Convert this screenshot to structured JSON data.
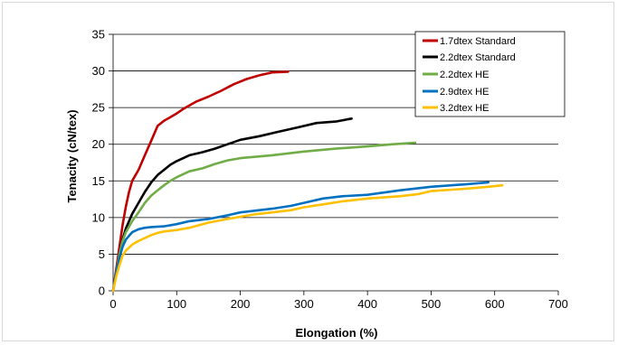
{
  "chart_data": {
    "type": "line",
    "xlabel": "Elongation (%)",
    "ylabel": "Tenacity (cN/tex)",
    "xlim": [
      0,
      700
    ],
    "ylim": [
      0,
      35
    ],
    "xticks": [
      0,
      100,
      200,
      300,
      400,
      500,
      600,
      700
    ],
    "yticks": [
      0,
      5,
      10,
      15,
      20,
      25,
      30,
      35
    ],
    "grid": "horizontal",
    "legend_position": "top-right",
    "series": [
      {
        "name": "1.7dtex Standard",
        "color": "#c00000",
        "points": [
          [
            0,
            0
          ],
          [
            5,
            3
          ],
          [
            10,
            6
          ],
          [
            15,
            9
          ],
          [
            20,
            11.5
          ],
          [
            25,
            13.5
          ],
          [
            30,
            15
          ],
          [
            40,
            16.5
          ],
          [
            50,
            18.5
          ],
          [
            60,
            20.5
          ],
          [
            70,
            22.5
          ],
          [
            80,
            23.2
          ],
          [
            90,
            23.7
          ],
          [
            100,
            24.2
          ],
          [
            110,
            24.8
          ],
          [
            130,
            25.8
          ],
          [
            150,
            26.5
          ],
          [
            170,
            27.3
          ],
          [
            190,
            28.2
          ],
          [
            210,
            28.9
          ],
          [
            230,
            29.4
          ],
          [
            250,
            29.8
          ],
          [
            275,
            29.9
          ]
        ]
      },
      {
        "name": "2.2dtex Standard",
        "color": "#000000",
        "points": [
          [
            0,
            0
          ],
          [
            5,
            2.5
          ],
          [
            10,
            5
          ],
          [
            15,
            7
          ],
          [
            20,
            8.5
          ],
          [
            30,
            10.5
          ],
          [
            40,
            12
          ],
          [
            50,
            13.5
          ],
          [
            60,
            14.8
          ],
          [
            70,
            15.8
          ],
          [
            80,
            16.5
          ],
          [
            90,
            17.2
          ],
          [
            100,
            17.7
          ],
          [
            120,
            18.5
          ],
          [
            140,
            18.9
          ],
          [
            160,
            19.4
          ],
          [
            180,
            20
          ],
          [
            200,
            20.6
          ],
          [
            230,
            21.1
          ],
          [
            260,
            21.7
          ],
          [
            290,
            22.3
          ],
          [
            320,
            22.9
          ],
          [
            350,
            23.1
          ],
          [
            375,
            23.5
          ]
        ]
      },
      {
        "name": "2.2dtex HE",
        "color": "#70ad47",
        "points": [
          [
            0,
            0
          ],
          [
            5,
            2.5
          ],
          [
            10,
            5
          ],
          [
            15,
            6.8
          ],
          [
            20,
            8
          ],
          [
            30,
            9.5
          ],
          [
            40,
            10.7
          ],
          [
            50,
            12
          ],
          [
            60,
            13
          ],
          [
            70,
            13.7
          ],
          [
            80,
            14.4
          ],
          [
            90,
            15
          ],
          [
            100,
            15.5
          ],
          [
            120,
            16.3
          ],
          [
            140,
            16.7
          ],
          [
            160,
            17.3
          ],
          [
            180,
            17.8
          ],
          [
            200,
            18.1
          ],
          [
            250,
            18.5
          ],
          [
            300,
            19
          ],
          [
            350,
            19.4
          ],
          [
            400,
            19.7
          ],
          [
            440,
            20
          ],
          [
            475,
            20.2
          ]
        ]
      },
      {
        "name": "2.9dtex HE",
        "color": "#0070c0",
        "points": [
          [
            0,
            0
          ],
          [
            5,
            2.5
          ],
          [
            10,
            4.5
          ],
          [
            15,
            6
          ],
          [
            20,
            7
          ],
          [
            30,
            8
          ],
          [
            40,
            8.4
          ],
          [
            50,
            8.6
          ],
          [
            60,
            8.7
          ],
          [
            80,
            8.8
          ],
          [
            100,
            9.1
          ],
          [
            120,
            9.5
          ],
          [
            150,
            9.8
          ],
          [
            180,
            10.3
          ],
          [
            200,
            10.7
          ],
          [
            250,
            11.2
          ],
          [
            280,
            11.6
          ],
          [
            300,
            12
          ],
          [
            330,
            12.6
          ],
          [
            360,
            12.9
          ],
          [
            400,
            13.1
          ],
          [
            450,
            13.7
          ],
          [
            500,
            14.2
          ],
          [
            550,
            14.5
          ],
          [
            590,
            14.8
          ]
        ]
      },
      {
        "name": "3.2dtex HE",
        "color": "#ffc000",
        "points": [
          [
            0,
            0
          ],
          [
            5,
            2
          ],
          [
            10,
            3.5
          ],
          [
            15,
            4.8
          ],
          [
            20,
            5.5
          ],
          [
            30,
            6.3
          ],
          [
            40,
            6.8
          ],
          [
            50,
            7.2
          ],
          [
            60,
            7.6
          ],
          [
            70,
            7.9
          ],
          [
            80,
            8.1
          ],
          [
            100,
            8.3
          ],
          [
            120,
            8.6
          ],
          [
            150,
            9.3
          ],
          [
            180,
            9.8
          ],
          [
            200,
            10.1
          ],
          [
            220,
            10.4
          ],
          [
            250,
            10.7
          ],
          [
            280,
            11
          ],
          [
            300,
            11.4
          ],
          [
            330,
            11.8
          ],
          [
            360,
            12.2
          ],
          [
            400,
            12.6
          ],
          [
            450,
            12.9
          ],
          [
            480,
            13.2
          ],
          [
            500,
            13.6
          ],
          [
            550,
            13.9
          ],
          [
            590,
            14.2
          ],
          [
            612,
            14.4
          ]
        ]
      }
    ]
  }
}
